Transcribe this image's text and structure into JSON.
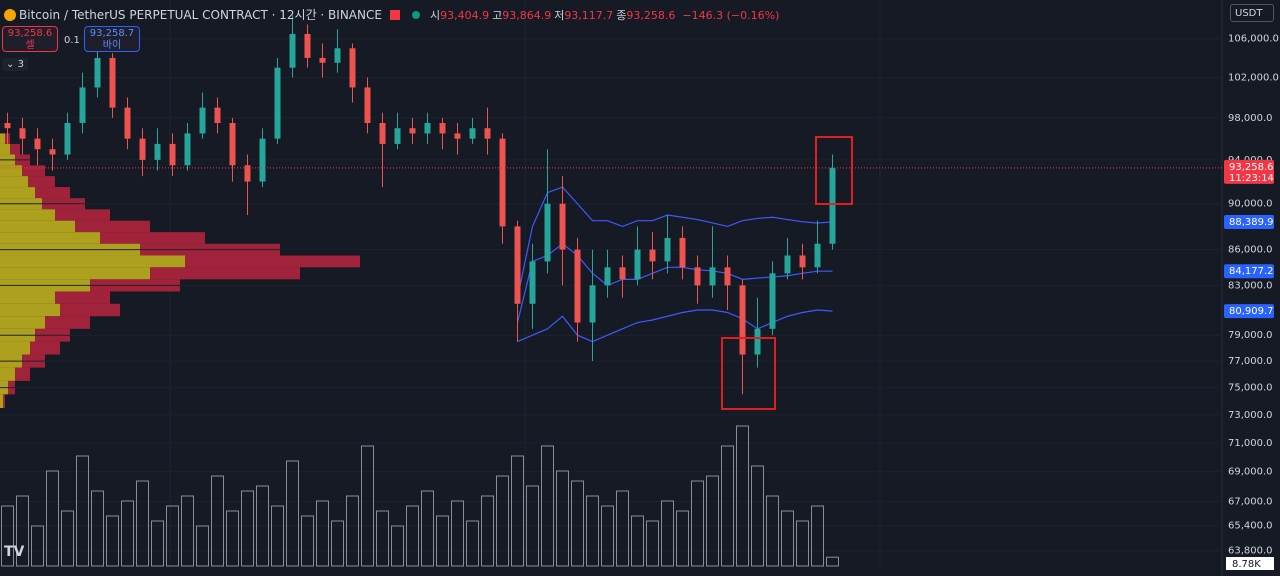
{
  "header": {
    "symbol": "Bitcoin / TetherUS PERPETUAL CONTRACT · 12시간 · BINANCE",
    "ohlc": [
      {
        "label": "시",
        "value": "93,404.9"
      },
      {
        "label": "고",
        "value": "93,864.9"
      },
      {
        "label": "저",
        "value": "93,117.7"
      },
      {
        "label": "종",
        "value": "93,258.6"
      }
    ],
    "change": "−146.3 (−0.16%)"
  },
  "trade": {
    "sell_price": "93,258.6",
    "sell_label": "셀",
    "qty": "0.1",
    "buy_price": "93,258.7",
    "buy_label": "바이",
    "indicators": "3"
  },
  "currency": "USDT",
  "chart_data": {
    "type": "candlestick",
    "log": true,
    "ylim": [
      62840,
      110150
    ],
    "yticks": [
      {
        "value": 106000,
        "label": "106,000.0"
      },
      {
        "value": 102000,
        "label": "102,000.0"
      },
      {
        "value": 98000,
        "label": "98,000.0"
      },
      {
        "value": 94000,
        "label": "94,000.0"
      },
      {
        "value": 90000,
        "label": "90,000.0"
      },
      {
        "value": 86000,
        "label": "86,000.0"
      },
      {
        "value": 83000,
        "label": "83,000.0"
      },
      {
        "value": 79000,
        "label": "79,000.0"
      },
      {
        "value": 77000,
        "label": "77,000.0"
      },
      {
        "value": 75000,
        "label": "75,000.0"
      },
      {
        "value": 73000,
        "label": "73,000.0"
      },
      {
        "value": 71000,
        "label": "71,000.0"
      },
      {
        "value": 69000,
        "label": "69,000.0"
      },
      {
        "value": 67000,
        "label": "67,000.0"
      },
      {
        "value": 65400,
        "label": "65,400.0"
      },
      {
        "value": 63800,
        "label": "63,800.0"
      }
    ],
    "up_color": "#26a69a",
    "down_color": "#ef5350",
    "open": [
      97500,
      97000,
      96000,
      95000,
      94500,
      97500,
      101000,
      104000,
      99000,
      96000,
      94000,
      95500,
      93500,
      96500,
      99000,
      97500,
      93500,
      92000,
      96000,
      103000,
      106500,
      104000,
      103500,
      105000,
      101000,
      97500,
      95500,
      97000,
      96500,
      97500,
      96500,
      96000,
      97000,
      96000,
      88000,
      81500,
      85000,
      90000,
      86000,
      80000,
      83000,
      84500,
      83500,
      86000,
      85000,
      87000,
      84500,
      83000,
      84500,
      83000,
      77500,
      79500,
      84000,
      85500,
      84500,
      86500
    ],
    "high": [
      98500,
      98000,
      97000,
      96000,
      98500,
      102500,
      106000,
      104500,
      100000,
      97000,
      97000,
      96500,
      97500,
      100500,
      100000,
      98000,
      94500,
      97000,
      104000,
      108500,
      107500,
      105500,
      107000,
      105500,
      102000,
      98500,
      98500,
      98000,
      98500,
      98000,
      97500,
      98000,
      99000,
      96500,
      88500,
      86500,
      95000,
      92500,
      87000,
      86000,
      86000,
      85500,
      88000,
      87500,
      89000,
      88000,
      85500,
      88000,
      85500,
      83500,
      82000,
      85000,
      87000,
      86500,
      88500,
      94500
    ],
    "low": [
      95500,
      94500,
      93500,
      93000,
      94000,
      96500,
      100000,
      98000,
      95000,
      92500,
      93000,
      92500,
      93000,
      96000,
      96500,
      92000,
      89000,
      91500,
      95500,
      102000,
      103000,
      102000,
      102500,
      99500,
      96500,
      91500,
      95000,
      95500,
      95500,
      95000,
      94500,
      95500,
      94500,
      86500,
      78500,
      79500,
      84000,
      83000,
      78500,
      77000,
      82000,
      82000,
      83000,
      83500,
      84000,
      83500,
      81500,
      82000,
      81000,
      74500,
      76500,
      79000,
      83500,
      83500,
      84000,
      86000
    ],
    "close": [
      97000,
      96000,
      95000,
      94500,
      97500,
      101000,
      104000,
      99000,
      96000,
      94000,
      95500,
      93500,
      96500,
      99000,
      97500,
      93500,
      92000,
      96000,
      103000,
      106500,
      104000,
      103500,
      105000,
      101000,
      97500,
      95500,
      97000,
      96500,
      97500,
      96500,
      96000,
      97000,
      96000,
      88000,
      81500,
      85000,
      90000,
      86000,
      80000,
      83000,
      84500,
      83500,
      86000,
      85000,
      87000,
      84500,
      83000,
      84500,
      83000,
      77500,
      79500,
      84000,
      85500,
      84500,
      86500,
      93258.6
    ],
    "bands": [
      {
        "color": "#3d5afe",
        "values": [
          null,
          null,
          null,
          null,
          null,
          null,
          null,
          null,
          null,
          null,
          null,
          null,
          null,
          null,
          null,
          null,
          null,
          null,
          null,
          null,
          null,
          null,
          null,
          null,
          null,
          null,
          null,
          null,
          null,
          null,
          null,
          null,
          null,
          null,
          82000,
          88000,
          91000,
          91500,
          90000,
          88500,
          88500,
          88000,
          88500,
          88500,
          89000,
          88800,
          88600,
          88300,
          88000,
          88500,
          88700,
          88800,
          88600,
          88400,
          88300,
          88389.9
        ]
      },
      {
        "color": "#3d5afe",
        "values": [
          null,
          null,
          null,
          null,
          null,
          null,
          null,
          null,
          null,
          null,
          null,
          null,
          null,
          null,
          null,
          null,
          null,
          null,
          null,
          null,
          null,
          null,
          null,
          null,
          null,
          null,
          null,
          null,
          null,
          null,
          null,
          null,
          null,
          null,
          80000,
          85000,
          85500,
          86500,
          85500,
          84000,
          83000,
          83500,
          83500,
          84000,
          84500,
          84500,
          84300,
          84200,
          84000,
          83500,
          83600,
          83700,
          83800,
          84000,
          84177.2,
          84177.2
        ]
      },
      {
        "color": "#3d5afe",
        "values": [
          null,
          null,
          null,
          null,
          null,
          null,
          null,
          null,
          null,
          null,
          null,
          null,
          null,
          null,
          null,
          null,
          null,
          null,
          null,
          null,
          null,
          null,
          null,
          null,
          null,
          null,
          null,
          null,
          null,
          null,
          null,
          null,
          null,
          null,
          78500,
          79000,
          79500,
          80500,
          79000,
          78500,
          79000,
          79500,
          80000,
          80200,
          80500,
          80800,
          81000,
          81000,
          80800,
          80300,
          79500,
          80000,
          80500,
          80800,
          81000,
          80909.7
        ]
      }
    ],
    "price_tags": [
      {
        "value": 88389.9,
        "label": "88,389.9",
        "color": "#2962ff"
      },
      {
        "value": 84177.2,
        "label": "84,177.2",
        "color": "#2962ff"
      },
      {
        "value": 80909.7,
        "label": "80,909.7",
        "color": "#2962ff"
      }
    ],
    "current_price": {
      "value": 93258.6,
      "label": "93,258.6",
      "countdown": "11:23:14",
      "color": "#f23645"
    },
    "volume": {
      "values": [
        60,
        70,
        40,
        95,
        55,
        110,
        75,
        50,
        65,
        85,
        45,
        60,
        70,
        40,
        90,
        55,
        75,
        80,
        60,
        105,
        50,
        65,
        45,
        70,
        120,
        55,
        40,
        60,
        75,
        50,
        65,
        45,
        70,
        90,
        110,
        80,
        120,
        95,
        85,
        70,
        60,
        75,
        50,
        45,
        65,
        55,
        85,
        90,
        120,
        140,
        100,
        70,
        55,
        45,
        60,
        8.78
      ],
      "label": "8.78K"
    },
    "profile": {
      "prices": [
        96000,
        95000,
        94000,
        93000,
        92000,
        91000,
        90000,
        89000,
        88000,
        87000,
        86000,
        85000,
        84000,
        83000,
        82000,
        81000,
        80000,
        79000,
        78000,
        77000,
        76000,
        75000,
        74000
      ],
      "buy": [
        5,
        10,
        15,
        22,
        28,
        35,
        42,
        55,
        75,
        100,
        140,
        185,
        150,
        90,
        55,
        60,
        45,
        35,
        30,
        22,
        15,
        8,
        3
      ],
      "sell": [
        5,
        10,
        15,
        23,
        27,
        35,
        43,
        55,
        75,
        105,
        140,
        175,
        150,
        90,
        55,
        60,
        45,
        35,
        30,
        23,
        15,
        7,
        2
      ],
      "buy_color": "#c9b81e",
      "sell_color": "#b8263f"
    }
  }
}
